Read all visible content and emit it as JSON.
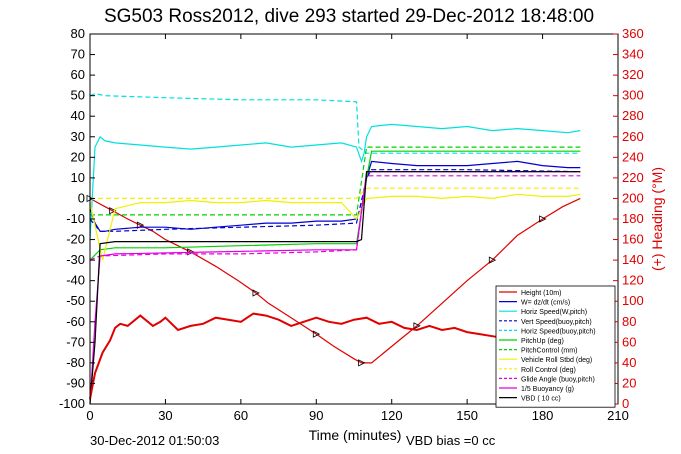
{
  "chart_data": {
    "type": "line",
    "title": "SG503 Ross2012, dive 293 started 29-Dec-2012 18:48:00",
    "xlabel": "Time (minutes)",
    "ylabel_right": "(+) Heading (°M)",
    "xlim": [
      0,
      210
    ],
    "ylim_left": [
      -100,
      80
    ],
    "ylim_right": [
      0,
      360
    ],
    "x_ticks": [
      "0",
      "30",
      "60",
      "90",
      "120",
      "150",
      "180",
      "210"
    ],
    "y_ticks_left": [
      "-100",
      "-90",
      "-80",
      "-70",
      "-60",
      "-50",
      "-40",
      "-30",
      "-20",
      "-10",
      "0",
      "10",
      "20",
      "30",
      "40",
      "50",
      "60",
      "70",
      "80"
    ],
    "y_ticks_right": [
      "0",
      "20",
      "40",
      "60",
      "80",
      "100",
      "120",
      "140",
      "160",
      "180",
      "200",
      "220",
      "240",
      "260",
      "280",
      "300",
      "320",
      "340",
      "360"
    ],
    "grid": false,
    "legend_position": "bottom-right",
    "footer_left": "30-Dec-2012 01:50:03",
    "footer_right": "VBD bias =0 cc",
    "series": [
      {
        "name": "Height (10m)",
        "color": "#e00000",
        "style": "solid-markers",
        "x": [
          0,
          3,
          6,
          9,
          12,
          15,
          20,
          25,
          30,
          40,
          50,
          59,
          66,
          71,
          80,
          90,
          97,
          105,
          108,
          112,
          120,
          130,
          140,
          150,
          160,
          170,
          175,
          180,
          188,
          195
        ],
        "y": [
          0,
          -2,
          -4,
          -6,
          -8,
          -10,
          -13,
          -16,
          -20,
          -26,
          -33,
          -40,
          -46,
          -51,
          -58,
          -66,
          -72,
          -78,
          -80,
          -80,
          -72,
          -62,
          -51,
          -40,
          -30,
          -18,
          -14,
          -10,
          -4,
          0
        ]
      },
      {
        "name": "W= dz/dt (cm/s)",
        "color": "#0000d0",
        "style": "solid",
        "x": [
          0,
          2,
          4,
          6,
          10,
          20,
          30,
          40,
          50,
          60,
          70,
          80,
          90,
          100,
          106,
          108,
          110,
          112,
          120,
          130,
          140,
          150,
          160,
          170,
          180,
          190,
          195
        ],
        "y": [
          -5,
          -12,
          -16,
          -16,
          -15,
          -14,
          -14,
          -15,
          -14,
          -13,
          -12,
          -12,
          -11,
          -11,
          -10,
          -5,
          10,
          18,
          17,
          16,
          16,
          16,
          17,
          18,
          16,
          15,
          15
        ]
      },
      {
        "name": "Horiz Speed(W,pitch)",
        "color": "#00e0e0",
        "style": "solid",
        "x": [
          0,
          2,
          4,
          6,
          10,
          20,
          30,
          40,
          50,
          60,
          70,
          80,
          90,
          100,
          106,
          108,
          109,
          110,
          112,
          120,
          130,
          140,
          150,
          160,
          170,
          180,
          190,
          195
        ],
        "y": [
          -20,
          25,
          30,
          28,
          27,
          26,
          25,
          24,
          25,
          26,
          27,
          25,
          26,
          27,
          25,
          18,
          22,
          30,
          35,
          36,
          35,
          34,
          35,
          33,
          34,
          33,
          32,
          33
        ]
      },
      {
        "name": "Vert Speed(buoy,pitch)",
        "color": "#0000d0",
        "style": "dashed",
        "x": [
          0,
          4,
          10,
          30,
          60,
          90,
          106,
          110,
          112,
          150,
          195
        ],
        "y": [
          -10,
          -16,
          -16,
          -15,
          -14,
          -13,
          -12,
          10,
          14,
          14,
          13
        ]
      },
      {
        "name": "Horiz Speed(buoy,pitch)",
        "color": "#00e0e0",
        "style": "dashed",
        "x": [
          0,
          2,
          6,
          30,
          60,
          90,
          106,
          107,
          110,
          150,
          195
        ],
        "y": [
          50,
          51,
          50,
          49,
          48,
          48,
          47,
          25,
          22,
          22,
          22
        ]
      },
      {
        "name": "PitchUp (deg)",
        "color": "#00d000",
        "style": "solid",
        "x": [
          0,
          4,
          10,
          30,
          60,
          90,
          106,
          110,
          112,
          150,
          195
        ],
        "y": [
          -30,
          -25,
          -24,
          -24,
          -23,
          -22,
          -22,
          10,
          23,
          23,
          23
        ]
      },
      {
        "name": "PitchControl (mm)",
        "color": "#00d000",
        "style": "dashed",
        "x": [
          0,
          4,
          10,
          30,
          60,
          90,
          106,
          110,
          150,
          195
        ],
        "y": [
          -8,
          -8,
          -8,
          -8,
          -8,
          -8,
          -8,
          25,
          25,
          25
        ]
      },
      {
        "name": "Vehicle Roll Stbd (deg)",
        "color": "#f0f000",
        "style": "solid",
        "x": [
          0,
          5,
          10,
          20,
          30,
          40,
          50,
          60,
          70,
          80,
          90,
          100,
          106,
          110,
          120,
          130,
          140,
          150,
          160,
          170,
          180,
          190,
          195
        ],
        "y": [
          -2,
          -30,
          -5,
          -2,
          -2,
          -1,
          -2,
          -2,
          -1,
          -2,
          -2,
          -2,
          -10,
          0,
          1,
          1,
          0,
          1,
          0,
          2,
          1,
          1,
          2
        ]
      },
      {
        "name": "Roll Control (deg)",
        "color": "#f0f000",
        "style": "dashed",
        "x": [
          0,
          10,
          50,
          90,
          106,
          110,
          150,
          195
        ],
        "y": [
          0,
          0,
          0,
          0,
          0,
          5,
          5,
          5
        ]
      },
      {
        "name": "Glide Angle (buoy,pitch)",
        "color": "#e000e0",
        "style": "dashed",
        "x": [
          0,
          4,
          30,
          60,
          90,
          106,
          110,
          150,
          195
        ],
        "y": [
          -30,
          -28,
          -27,
          -27,
          -26,
          -25,
          11,
          11,
          11
        ]
      },
      {
        "name": "1/5 Buoyancy (g)",
        "color": "#e000e0",
        "style": "solid",
        "x": [
          0,
          2,
          4,
          10,
          50,
          90,
          106,
          110,
          150,
          195
        ],
        "y": [
          -100,
          -60,
          -28,
          -27,
          -26,
          -25,
          -25,
          13,
          13,
          13
        ]
      },
      {
        "name": "VBD ( 10 cc)",
        "color": "#000000",
        "style": "solid",
        "x": [
          0,
          2,
          4,
          10,
          50,
          90,
          106,
          108,
          110,
          150,
          195
        ],
        "y": [
          -100,
          -70,
          -22,
          -21,
          -21,
          -21,
          -21,
          -20,
          13,
          13,
          13
        ]
      },
      {
        "name": "Heading",
        "color": "#e00000",
        "style": "solid",
        "axis": "right",
        "x": [
          0,
          2,
          5,
          8,
          10,
          12,
          15,
          20,
          25,
          28,
          30,
          35,
          40,
          45,
          50,
          55,
          60,
          65,
          70,
          75,
          80,
          85,
          90,
          95,
          100,
          105,
          110,
          115,
          120,
          125,
          130,
          135,
          140,
          145,
          150,
          155,
          160,
          165,
          170,
          175,
          180,
          185,
          190,
          195
        ],
        "y": [
          5,
          30,
          50,
          62,
          74,
          78,
          76,
          86,
          76,
          80,
          84,
          72,
          76,
          78,
          84,
          82,
          80,
          88,
          86,
          82,
          76,
          80,
          84,
          80,
          78,
          82,
          84,
          78,
          80,
          74,
          72,
          76,
          72,
          74,
          70,
          68,
          66,
          64,
          68,
          72,
          70,
          74,
          72,
          76
        ]
      }
    ]
  }
}
